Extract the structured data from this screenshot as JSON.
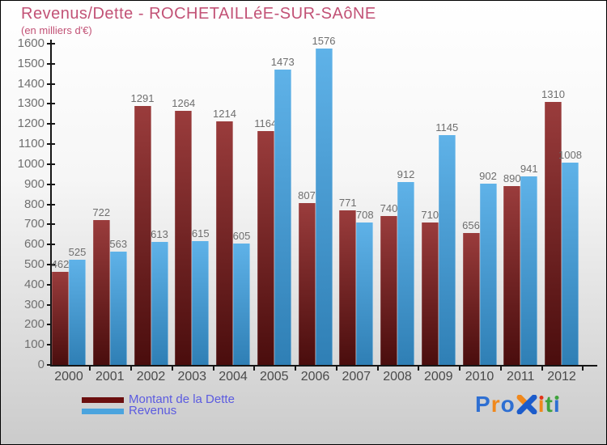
{
  "title": "Revenus/Dette - ROCHETAILLéE-SUR-SAôNE",
  "subtitle": "(en milliers d'€)",
  "chart_data": {
    "type": "bar",
    "categories": [
      "2000",
      "2001",
      "2002",
      "2003",
      "2004",
      "2005",
      "2006",
      "2007",
      "2008",
      "2009",
      "2010",
      "2011",
      "2012"
    ],
    "series": [
      {
        "name": "Montant de la Dette",
        "color_top": "#9A3C3C",
        "color_bottom": "#4A0D0D",
        "legend_color": "#6B0F0F",
        "values": [
          462,
          722,
          1291,
          1264,
          1214,
          1164,
          807,
          771,
          740,
          710,
          656,
          890,
          1310
        ]
      },
      {
        "name": "Revenus",
        "color_top": "#5FB2E8",
        "color_bottom": "#2F7FB5",
        "legend_color": "#4BA4DE",
        "values": [
          525,
          563,
          613,
          615,
          605,
          1473,
          1576,
          708,
          912,
          1145,
          902,
          941,
          1008
        ]
      }
    ],
    "ylim": [
      0,
      1600
    ],
    "ytick_step": 100,
    "yticks": [
      0,
      100,
      200,
      300,
      400,
      500,
      600,
      700,
      800,
      900,
      1000,
      1100,
      1200,
      1300,
      1400,
      1500,
      1600
    ],
    "grid": false,
    "legend_position": "bottom-left",
    "value_labels": true
  },
  "legend": {
    "items": [
      {
        "label": "Montant de la Dette"
      },
      {
        "label": "Revenus"
      }
    ]
  },
  "logo": {
    "text": "Proxiti",
    "letters": [
      {
        "ch": "P",
        "color": "#2E6FD2"
      },
      {
        "ch": "r",
        "color": "#F0881C"
      },
      {
        "ch": "o",
        "color": "#2E6FD2"
      },
      {
        "ch": "x-icon",
        "icon": true,
        "arm_color": "#F0881C",
        "main_color": "#1C5CCB"
      },
      {
        "ch": "i",
        "color": "#F0881C",
        "dot_color": "#E23418"
      },
      {
        "ch": "t",
        "color": "#3FA33C"
      },
      {
        "ch": "i",
        "color": "#2E6FD2",
        "dot_color": "#3FA33C"
      }
    ]
  },
  "colors": {
    "title": "#C25276",
    "legend-text": "#5B5BE0",
    "axis": "#161616",
    "value-label": "#6e6e6e",
    "x-label": "#4a4a4a",
    "y-label": "#707070",
    "bg-top": "#ffffff",
    "bg-bottom": "#cbcbcb"
  }
}
